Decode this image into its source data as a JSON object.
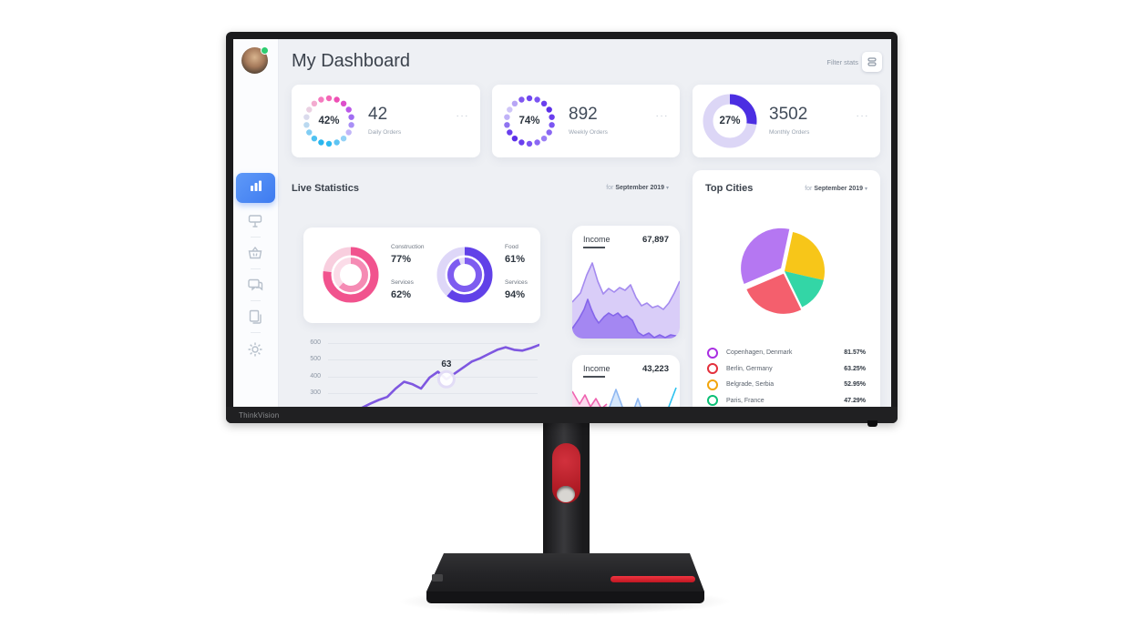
{
  "monitor": {
    "brand": "ThinkVision"
  },
  "header": {
    "title": "My Dashboard",
    "filter_label": "Filter stats"
  },
  "sidebar": {
    "items": [
      "analytics",
      "campaigns",
      "orders",
      "messages",
      "documents",
      "settings"
    ]
  },
  "stat_cards": [
    {
      "percent": "42%",
      "value": "42",
      "label": "Daily Orders",
      "menu": "···"
    },
    {
      "percent": "74%",
      "value": "892",
      "label": "Weekly Orders",
      "menu": "···"
    },
    {
      "percent": "27%",
      "value": "3502",
      "label": "Monthly Orders",
      "menu": "···"
    }
  ],
  "sections": {
    "live_statistics": {
      "title": "Live Statistics",
      "period_prefix": "for",
      "period": "September 2019",
      "chevron": "▾"
    },
    "top_cities": {
      "title": "Top Cities",
      "period_prefix": "for",
      "period": "September 2019",
      "chevron": "▾",
      "legend": [
        {
          "city": "Copenhagen, Denmark",
          "pct": "81.57%",
          "ring_color": "#a92fe2"
        },
        {
          "city": "Berlin, Germany",
          "pct": "63.25%",
          "ring_color": "#e3303c"
        },
        {
          "city": "Belgrade, Serbia",
          "pct": "52.95%",
          "ring_color": "#f2a50c"
        },
        {
          "city": "Paris, France",
          "pct": "47.29%",
          "ring_color": "#0bbf75"
        }
      ]
    }
  },
  "chart_data": [
    {
      "id": "daily-orders-ring",
      "type": "donut",
      "style": "dotted",
      "label": "Daily Orders",
      "value": 42,
      "unit": "%",
      "dot_colors": [
        "#f466b6",
        "#ee4fb4",
        "#dd4ecb",
        "#bb58e8",
        "#a06df2",
        "#a98ff6",
        "#c2b6f8",
        "#93d2f6",
        "#5ec4f3",
        "#30baf0",
        "#29b6ee",
        "#4fc1f1",
        "#81cdf4",
        "#bad9f0",
        "#dadbed",
        "#ead0e2",
        "#f3abd0",
        "#f57bbf"
      ]
    },
    {
      "id": "weekly-orders-ring",
      "type": "donut",
      "style": "dotted",
      "label": "Weekly Orders",
      "value": 74,
      "unit": "%",
      "dot_colors": [
        "#6e46f0",
        "#7b55f2",
        "#6a3fee",
        "#5c30e8",
        "#6a3fee",
        "#7b55f2",
        "#8a68f3",
        "#9a7ef5",
        "#8a68f3",
        "#7b55f2",
        "#6a3fee",
        "#5c30e8",
        "#6a3fee",
        "#8f73f0",
        "#c0b2f7",
        "#cfc5f8",
        "#b7a5f5",
        "#8057f0"
      ]
    },
    {
      "id": "monthly-orders-ring",
      "type": "donut",
      "style": "solid",
      "label": "Monthly Orders",
      "value": 27,
      "unit": "%",
      "track_color": "#dcd6f6",
      "arc_color": "#4b2ee2"
    },
    {
      "id": "construction-services-donut",
      "type": "donut",
      "style": "double-ring",
      "rings": [
        {
          "label": "Construction",
          "value": 77,
          "display": "77%",
          "color": "#f1538e",
          "track": "#f8cede"
        },
        {
          "label": "Services",
          "value": 62,
          "display": "62%",
          "color": "#f58bb4",
          "track": "#fbdce8"
        }
      ]
    },
    {
      "id": "food-services-donut",
      "type": "donut",
      "style": "double-ring",
      "rings": [
        {
          "label": "Food",
          "value": 61,
          "display": "61%",
          "color": "#6141e8",
          "track": "#ded7f8"
        },
        {
          "label": "Services",
          "value": 94,
          "display": "94%",
          "color": "#7e5cf0",
          "track": "#e4def8"
        }
      ]
    },
    {
      "id": "trend-line",
      "type": "line",
      "color": "#7e57e0",
      "ylim": [
        300,
        600
      ],
      "grid": true,
      "yticks": [
        "600",
        "500",
        "400",
        "300"
      ],
      "values": [
        150,
        170,
        190,
        205,
        215,
        240,
        262,
        280,
        330,
        370,
        355,
        330,
        395,
        430,
        385,
        420,
        455,
        490,
        510,
        535,
        560,
        575,
        560,
        555,
        570,
        590
      ],
      "highlight": {
        "index": 14,
        "label": "63"
      }
    },
    {
      "id": "income-area-1",
      "type": "area",
      "title": "Income",
      "value": "67,897",
      "layers": [
        {
          "fill": "#d9cdf8",
          "stroke": "#a48aef",
          "points": [
            [
              0,
              50
            ],
            [
              9,
              40
            ],
            [
              16,
              20
            ],
            [
              22,
              7
            ],
            [
              28,
              27
            ],
            [
              34,
              41
            ],
            [
              40,
              35
            ],
            [
              46,
              39
            ],
            [
              52,
              34
            ],
            [
              58,
              37
            ],
            [
              64,
              31
            ],
            [
              70,
              45
            ],
            [
              76,
              54
            ],
            [
              82,
              51
            ],
            [
              88,
              56
            ],
            [
              94,
              54
            ],
            [
              100,
              58
            ],
            [
              106,
              51
            ],
            [
              112,
              40
            ],
            [
              118,
              27
            ]
          ]
        },
        {
          "fill": "#9d7ff1",
          "stroke": "#8465ea",
          "opacity": 0.9,
          "points": [
            [
              0,
              79
            ],
            [
              7,
              69
            ],
            [
              13,
              58
            ],
            [
              17,
              47
            ],
            [
              21,
              58
            ],
            [
              25,
              67
            ],
            [
              29,
              73
            ],
            [
              35,
              66
            ],
            [
              40,
              62
            ],
            [
              45,
              65
            ],
            [
              50,
              62
            ],
            [
              55,
              67
            ],
            [
              60,
              65
            ],
            [
              66,
              70
            ],
            [
              72,
              83
            ],
            [
              78,
              87
            ],
            [
              84,
              84
            ],
            [
              90,
              89
            ],
            [
              96,
              86
            ],
            [
              102,
              89
            ],
            [
              108,
              86
            ],
            [
              118,
              88
            ]
          ]
        }
      ]
    },
    {
      "id": "income-area-2",
      "type": "area",
      "title": "Income",
      "value": "43,223",
      "layers": [
        {
          "fill": "#d6e7fb",
          "stroke": "#8fb8f2",
          "points": [
            [
              34,
              44
            ],
            [
              48,
              6
            ],
            [
              62,
              44
            ]
          ]
        },
        {
          "fill": "#d6e7fb",
          "stroke": "#8fb8f2",
          "points": [
            [
              62,
              44
            ],
            [
              72,
              16
            ],
            [
              82,
              44
            ]
          ]
        },
        {
          "fill": "#fbd9ee",
          "stroke": "#ef63b0",
          "points": [
            [
              0,
              8
            ],
            [
              8,
              22
            ],
            [
              14,
              12
            ],
            [
              20,
              25
            ],
            [
              26,
              16
            ],
            [
              32,
              27
            ],
            [
              38,
              22
            ]
          ]
        },
        {
          "fill": "none",
          "stroke": "#2bc1ef",
          "points": [
            [
              98,
              46
            ],
            [
              114,
              4
            ]
          ]
        }
      ]
    },
    {
      "id": "top-cities-pie",
      "type": "pie",
      "slices": [
        {
          "city": "Copenhagen, Denmark",
          "legend_pct": "81.57%",
          "color": "#b577f2",
          "start": 247,
          "end": 372,
          "explode": 5
        },
        {
          "city": "Berlin, Germany",
          "legend_pct": "63.25%",
          "color": "#f45f6d",
          "start": 154,
          "end": 247,
          "explode": 3
        },
        {
          "city": "Belgrade, Serbia",
          "legend_pct": "52.95%",
          "color": "#f7c619",
          "start": 12,
          "end": 103,
          "explode": 0
        },
        {
          "city": "Paris, France",
          "legend_pct": "47.29%",
          "color": "#33d6a6",
          "start": 103,
          "end": 154,
          "explode": 0
        }
      ]
    }
  ]
}
